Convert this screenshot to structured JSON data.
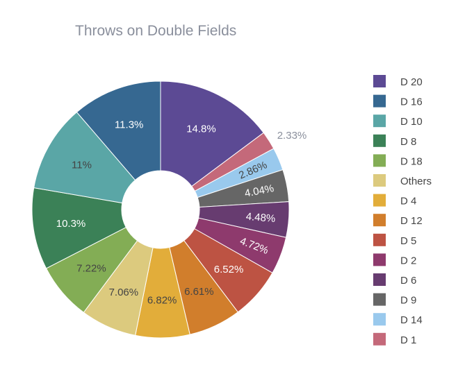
{
  "chart_data": {
    "type": "pie",
    "hole": true,
    "title": "Throws on Double Fields",
    "legend_position": "right",
    "slices": [
      {
        "label": "D 20",
        "percent": 14.8,
        "display": "14.8%",
        "color": "#5c4a94",
        "text_color": "#ffffff"
      },
      {
        "label": "D 1",
        "percent": 2.33,
        "display": "2.33%",
        "color": "#c4697a",
        "text_color": "#8a8f9c"
      },
      {
        "label": "D 14",
        "percent": 2.86,
        "display": "2.86%",
        "color": "#99c9ed",
        "text_color": "#444444"
      },
      {
        "label": "D 9",
        "percent": 4.04,
        "display": "4.04%",
        "color": "#666666",
        "text_color": "#ffffff"
      },
      {
        "label": "D 6",
        "percent": 4.48,
        "display": "4.48%",
        "color": "#673c70",
        "text_color": "#ffffff"
      },
      {
        "label": "D 2",
        "percent": 4.72,
        "display": "4.72%",
        "color": "#8e3a6d",
        "text_color": "#ffffff"
      },
      {
        "label": "D 5",
        "percent": 6.52,
        "display": "6.52%",
        "color": "#bd5343",
        "text_color": "#ffffff"
      },
      {
        "label": "D 12",
        "percent": 6.61,
        "display": "6.61%",
        "color": "#d17e2c",
        "text_color": "#444444"
      },
      {
        "label": "D 4",
        "percent": 6.82,
        "display": "6.82%",
        "color": "#e2ad3a",
        "text_color": "#444444"
      },
      {
        "label": "Others",
        "percent": 7.06,
        "display": "7.06%",
        "color": "#dcca7e",
        "text_color": "#444444"
      },
      {
        "label": "D 18",
        "percent": 7.22,
        "display": "7.22%",
        "color": "#83ad55",
        "text_color": "#444444"
      },
      {
        "label": "D 8",
        "percent": 10.3,
        "display": "10.3%",
        "color": "#3b8157",
        "text_color": "#ffffff"
      },
      {
        "label": "D 10",
        "percent": 11.0,
        "display": "11%",
        "color": "#5aa6a6",
        "text_color": "#444444"
      },
      {
        "label": "D 16",
        "percent": 11.3,
        "display": "11.3%",
        "color": "#366891",
        "text_color": "#ffffff"
      }
    ],
    "legend_order": [
      "D 20",
      "D 16",
      "D 10",
      "D 8",
      "D 18",
      "Others",
      "D 4",
      "D 12",
      "D 5",
      "D 2",
      "D 6",
      "D 9",
      "D 14",
      "D 1"
    ]
  }
}
